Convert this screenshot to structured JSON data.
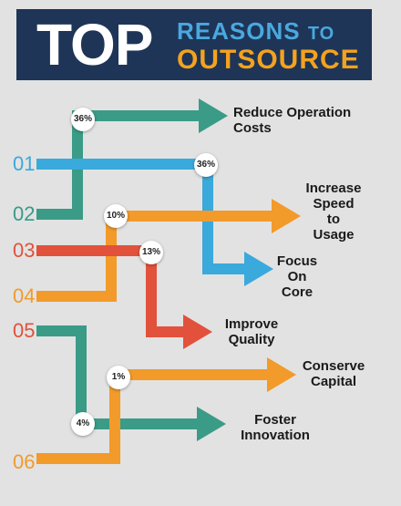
{
  "header": {
    "top_word": "TOP",
    "reasons_word": "REASONS",
    "to_word": "TO",
    "outsource_word": "OUTSOURCE"
  },
  "numbers": [
    "01",
    "02",
    "03",
    "04",
    "05",
    "06"
  ],
  "reasons": [
    {
      "label_lines": [
        "Reduce Operation",
        "Costs"
      ],
      "percent": "36%",
      "color": "#3a9b87"
    },
    {
      "label_lines": [
        "Focus",
        "On",
        "Core"
      ],
      "percent": "36%",
      "color": "#3aa9db"
    },
    {
      "label_lines": [
        "Increase",
        "Speed",
        "to",
        "Usage"
      ],
      "percent": "10%",
      "color": "#f29a2a"
    },
    {
      "label_lines": [
        "Improve",
        "Quality"
      ],
      "percent": "13%",
      "color": "#e2513b"
    },
    {
      "label_lines": [
        "Conserve",
        "Capital"
      ],
      "percent": "1%",
      "color": "#f29a2a"
    },
    {
      "label_lines": [
        "Foster",
        "Innovation"
      ],
      "percent": "4%",
      "color": "#3a9b87"
    }
  ],
  "colors": {
    "banner": "#1e3557",
    "blue": "#3aa9db",
    "teal": "#3a9b87",
    "orange": "#f29a2a",
    "red": "#e2513b"
  }
}
